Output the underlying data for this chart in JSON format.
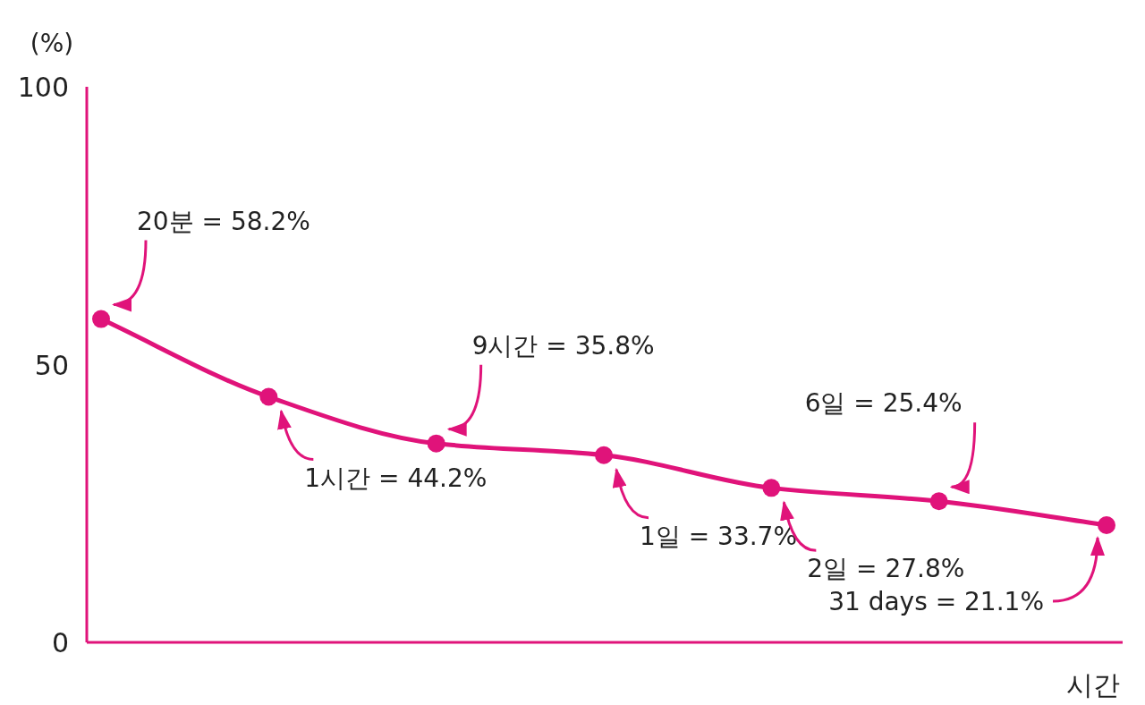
{
  "chart_data": {
    "type": "line",
    "ylabel": "(%)",
    "xlabel": "시간",
    "categories": [
      null,
      null,
      null,
      null,
      null,
      null,
      null
    ],
    "values": [
      58.2,
      44.2,
      35.8,
      33.7,
      27.8,
      25.4,
      21.1
    ],
    "color": "#e0137a",
    "marker": "circle",
    "ylim": [
      0,
      100
    ],
    "yticks": [
      0,
      50,
      100
    ],
    "annotations": [
      "20분 = 58.2%",
      "1시간 = 44.2%",
      "9시간 = 35.8%",
      "1일 = 33.7%",
      "2일 = 27.8%",
      "6일 = 25.4%",
      "31 days = 21.1%"
    ]
  }
}
